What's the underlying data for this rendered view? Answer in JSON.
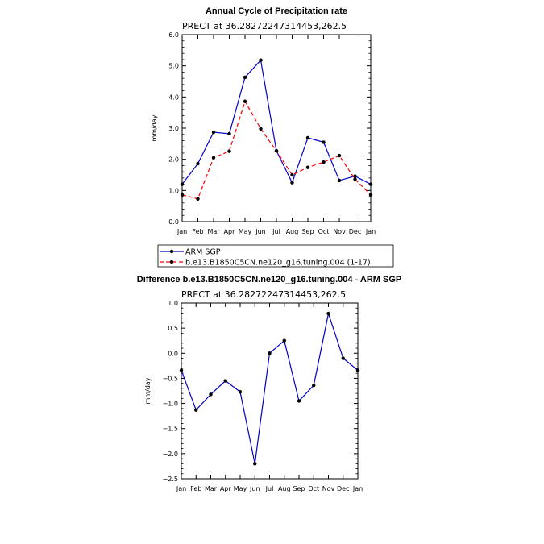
{
  "chart_data": [
    {
      "type": "line",
      "title": "Annual Cycle of Precipitation rate",
      "subtitle": "PRECT at 36.28272247314453,262.5",
      "xlabel": "",
      "ylabel": "mm/day",
      "categories": [
        "Jan",
        "Feb",
        "Mar",
        "Apr",
        "May",
        "Jun",
        "Jul",
        "Aug",
        "Sep",
        "Oct",
        "Nov",
        "Dec",
        "Jan"
      ],
      "ylim": [
        0,
        6
      ],
      "yticks": [
        "0.0",
        "1.0",
        "2.0",
        "3.0",
        "4.0",
        "5.0",
        "6.0"
      ],
      "series": [
        {
          "name": "ARM SGP",
          "color": "#0000cc",
          "style": "solid",
          "values": [
            1.2,
            1.86,
            2.87,
            2.82,
            4.63,
            5.18,
            2.27,
            1.25,
            2.69,
            2.55,
            1.32,
            1.46,
            1.2
          ]
        },
        {
          "name": "b.e13.B1850C5CN.ne120_g16.tuning.004 (1-17)",
          "color": "#ff0000",
          "style": "dashed",
          "values": [
            0.86,
            0.73,
            2.05,
            2.26,
            3.86,
            2.98,
            2.27,
            1.5,
            1.74,
            1.91,
            2.12,
            1.36,
            0.86
          ]
        }
      ],
      "legend_position": "bottom-left"
    },
    {
      "type": "line",
      "title": "Difference b.e13.B1850C5CN.ne120_g16.tuning.004 - ARM SGP",
      "subtitle": "PRECT at 36.28272247314453,262.5",
      "xlabel": "",
      "ylabel": "mm/day",
      "categories": [
        "Jan",
        "Feb",
        "Mar",
        "Apr",
        "May",
        "Jun",
        "Jul",
        "Aug",
        "Sep",
        "Oct",
        "Nov",
        "Dec",
        "Jan"
      ],
      "ylim": [
        -2.5,
        1.0
      ],
      "yticks": [
        "−2.5",
        "−2.0",
        "−1.5",
        "−1.0",
        "−0.5",
        "0.0",
        "0.5",
        "1.0"
      ],
      "series": [
        {
          "name": "Difference",
          "color": "#0000cc",
          "style": "solid",
          "values": [
            -0.34,
            -1.13,
            -0.82,
            -0.55,
            -0.77,
            -2.2,
            0.0,
            0.25,
            -0.95,
            -0.64,
            0.79,
            -0.1,
            -0.34
          ]
        }
      ]
    }
  ]
}
